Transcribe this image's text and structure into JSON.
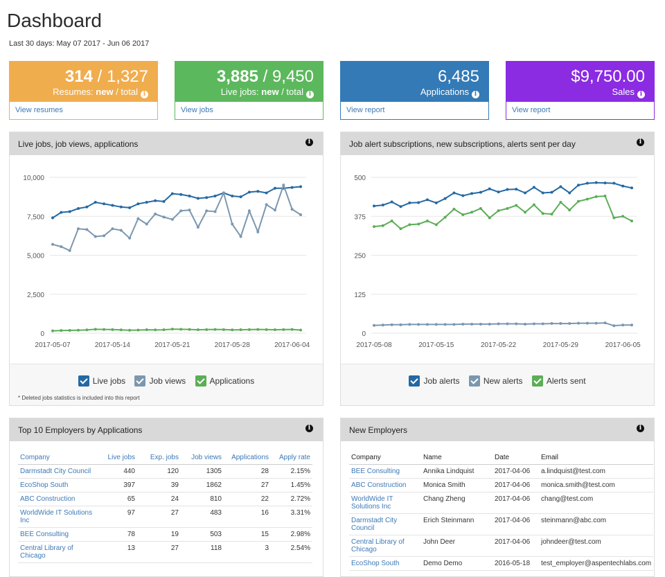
{
  "page": {
    "title": "Dashboard",
    "subtitle": "Last 30 days: May 07 2017 - Jun 06 2017"
  },
  "kpis": [
    {
      "big_bold": "314",
      "big_rest": " / 1,327",
      "label": "Resumes: ",
      "label_bold": "new",
      "label_rest": " / total",
      "link": "View resumes",
      "color": "#f0ad4e"
    },
    {
      "big_bold": "3,885",
      "big_rest": " / 9,450",
      "label": "Live jobs: ",
      "label_bold": "new",
      "label_rest": " / total",
      "link": "View jobs",
      "color": "#5cb85c"
    },
    {
      "big_bold": "",
      "big_rest": "6,485",
      "label": "Applications",
      "label_bold": "",
      "label_rest": "",
      "link": "View report",
      "color": "#337ab7"
    },
    {
      "big_bold": "",
      "big_rest": "$9,750.00",
      "label": "Sales",
      "label_bold": "",
      "label_rest": "",
      "link": "View report",
      "color": "#8b2be2"
    }
  ],
  "panels": {
    "chart1_title": "Live jobs, job views, applications",
    "chart2_title": "Job alert subscriptions, new subscriptions, alerts sent per day",
    "table1_title": "Top 10 Employers by Applications",
    "table2_title": "New Employers",
    "footnote": "* Deleted jobs statistics is included into this report"
  },
  "chart_data": [
    {
      "type": "line",
      "ylim": [
        0,
        10000
      ],
      "yticks": [
        "0",
        "2,500",
        "5,000",
        "7,500",
        "10,000"
      ],
      "xticks": [
        "2017-05-07",
        "2017-05-14",
        "2017-05-21",
        "2017-05-28",
        "2017-06-04"
      ],
      "grid": true,
      "legend_position": "bottom",
      "series": [
        {
          "name": "Live jobs",
          "color": "#2469a3",
          "values": [
            7400,
            7750,
            7800,
            8000,
            8100,
            8400,
            8300,
            8200,
            8100,
            8050,
            8300,
            8400,
            8500,
            8450,
            8950,
            8900,
            8800,
            8650,
            8700,
            8800,
            9000,
            8800,
            8750,
            9050,
            9100,
            9000,
            9300,
            9300,
            9350,
            9400
          ]
        },
        {
          "name": "Job views",
          "color": "#7b97b0",
          "values": [
            5700,
            5550,
            5300,
            6700,
            6650,
            6200,
            6250,
            6700,
            6600,
            6100,
            7350,
            7000,
            7650,
            7450,
            7300,
            7850,
            7900,
            6800,
            7850,
            7800,
            9000,
            7000,
            6200,
            7850,
            6500,
            8250,
            7900,
            9500,
            7950,
            7600
          ]
        },
        {
          "name": "Applications",
          "color": "#5cae57",
          "values": [
            150,
            170,
            180,
            190,
            210,
            250,
            240,
            230,
            210,
            190,
            200,
            220,
            210,
            220,
            260,
            250,
            240,
            220,
            230,
            240,
            230,
            210,
            220,
            230,
            240,
            230,
            220,
            230,
            240,
            200
          ]
        }
      ]
    },
    {
      "type": "line",
      "ylim": [
        0,
        500
      ],
      "yticks": [
        "0",
        "125",
        "250",
        "375",
        "500"
      ],
      "xticks": [
        "2017-05-08",
        "2017-05-15",
        "2017-05-22",
        "2017-05-29",
        "2017-06-05"
      ],
      "grid": true,
      "legend_position": "bottom",
      "series": [
        {
          "name": "Job alerts",
          "color": "#2469a3",
          "values": [
            408,
            411,
            421,
            406,
            418,
            419,
            428,
            418,
            432,
            450,
            441,
            448,
            452,
            463,
            453,
            461,
            462,
            450,
            468,
            450,
            452,
            470,
            450,
            475,
            481,
            483,
            482,
            481,
            472,
            466
          ]
        },
        {
          "name": "New alerts",
          "color": "#7b97b0",
          "values": [
            25,
            26,
            27,
            27,
            28,
            28,
            28,
            28,
            28,
            28,
            29,
            29,
            29,
            29,
            30,
            30,
            30,
            29,
            30,
            30,
            31,
            31,
            31,
            32,
            32,
            32,
            33,
            24,
            26,
            26
          ]
        },
        {
          "name": "Alerts sent",
          "color": "#5cae57",
          "values": [
            342,
            345,
            360,
            335,
            348,
            350,
            360,
            348,
            372,
            398,
            380,
            388,
            400,
            370,
            393,
            400,
            410,
            388,
            412,
            384,
            382,
            420,
            395,
            423,
            430,
            438,
            440,
            370,
            375,
            360
          ]
        }
      ]
    }
  ],
  "table1": {
    "headers": [
      "Company",
      "Live jobs",
      "Exp. jobs",
      "Job views",
      "Applications",
      "Apply rate"
    ],
    "rows": [
      [
        "Darmstadt City Council",
        "440",
        "120",
        "1305",
        "28",
        "2.15%"
      ],
      [
        "EcoShop South",
        "397",
        "39",
        "1862",
        "27",
        "1.45%"
      ],
      [
        "ABC Construction",
        "65",
        "24",
        "810",
        "22",
        "2.72%"
      ],
      [
        "WorldWide IT Solutions Inc",
        "97",
        "27",
        "483",
        "16",
        "3.31%"
      ],
      [
        "BEE Consulting",
        "78",
        "19",
        "503",
        "15",
        "2.98%"
      ],
      [
        "Central Library of Chicago",
        "13",
        "27",
        "118",
        "3",
        "2.54%"
      ]
    ]
  },
  "table2": {
    "headers": [
      "Company",
      "Name",
      "Date",
      "Email"
    ],
    "rows": [
      [
        "BEE Consulting",
        "Annika Lindquist",
        "2017-04-06",
        "a.lindquist@test.com"
      ],
      [
        "ABC Construction",
        "Monica Smith",
        "2017-04-06",
        "monica.smith@test.com"
      ],
      [
        "WorldWide IT Solutions Inc",
        "Chang Zheng",
        "2017-04-06",
        "chang@test.com"
      ],
      [
        "Darmstadt City Council",
        "Erich Steinmann",
        "2017-04-06",
        "steinmann@abc.com"
      ],
      [
        "Central Library of Chicago",
        "John Deer",
        "2017-04-06",
        "johndeer@test.com"
      ],
      [
        "EcoShop South",
        "Demo Demo",
        "2016-05-18",
        "test_employer@aspentechlabs.com"
      ]
    ]
  }
}
